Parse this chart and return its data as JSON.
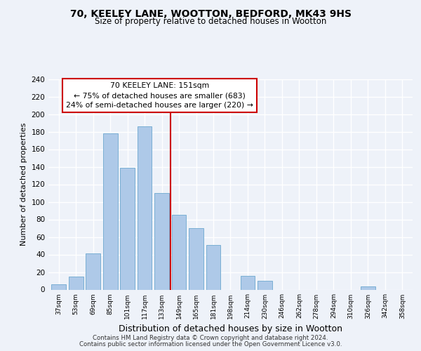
{
  "title": "70, KEELEY LANE, WOOTTON, BEDFORD, MK43 9HS",
  "subtitle": "Size of property relative to detached houses in Wootton",
  "xlabel": "Distribution of detached houses by size in Wootton",
  "ylabel": "Number of detached properties",
  "bin_labels": [
    "37sqm",
    "53sqm",
    "69sqm",
    "85sqm",
    "101sqm",
    "117sqm",
    "133sqm",
    "149sqm",
    "165sqm",
    "181sqm",
    "198sqm",
    "214sqm",
    "230sqm",
    "246sqm",
    "262sqm",
    "278sqm",
    "294sqm",
    "310sqm",
    "326sqm",
    "342sqm",
    "358sqm"
  ],
  "bar_values": [
    6,
    15,
    41,
    178,
    139,
    186,
    110,
    85,
    70,
    51,
    0,
    16,
    10,
    0,
    0,
    0,
    0,
    0,
    4,
    0,
    0
  ],
  "bar_color": "#aec9e8",
  "bar_edge_color": "#7aafd4",
  "marker_line_index": 7,
  "annotation_title": "70 KEELEY LANE: 151sqm",
  "annotation_line1": "← 75% of detached houses are smaller (683)",
  "annotation_line2": "24% of semi-detached houses are larger (220) →",
  "annotation_box_color": "#ffffff",
  "annotation_box_edge": "#cc0000",
  "marker_line_color": "#cc0000",
  "ylim": [
    0,
    240
  ],
  "yticks": [
    0,
    20,
    40,
    60,
    80,
    100,
    120,
    140,
    160,
    180,
    200,
    220,
    240
  ],
  "footer1": "Contains HM Land Registry data © Crown copyright and database right 2024.",
  "footer2": "Contains public sector information licensed under the Open Government Licence v3.0.",
  "bg_color": "#eef2f9",
  "grid_color": "#ffffff"
}
